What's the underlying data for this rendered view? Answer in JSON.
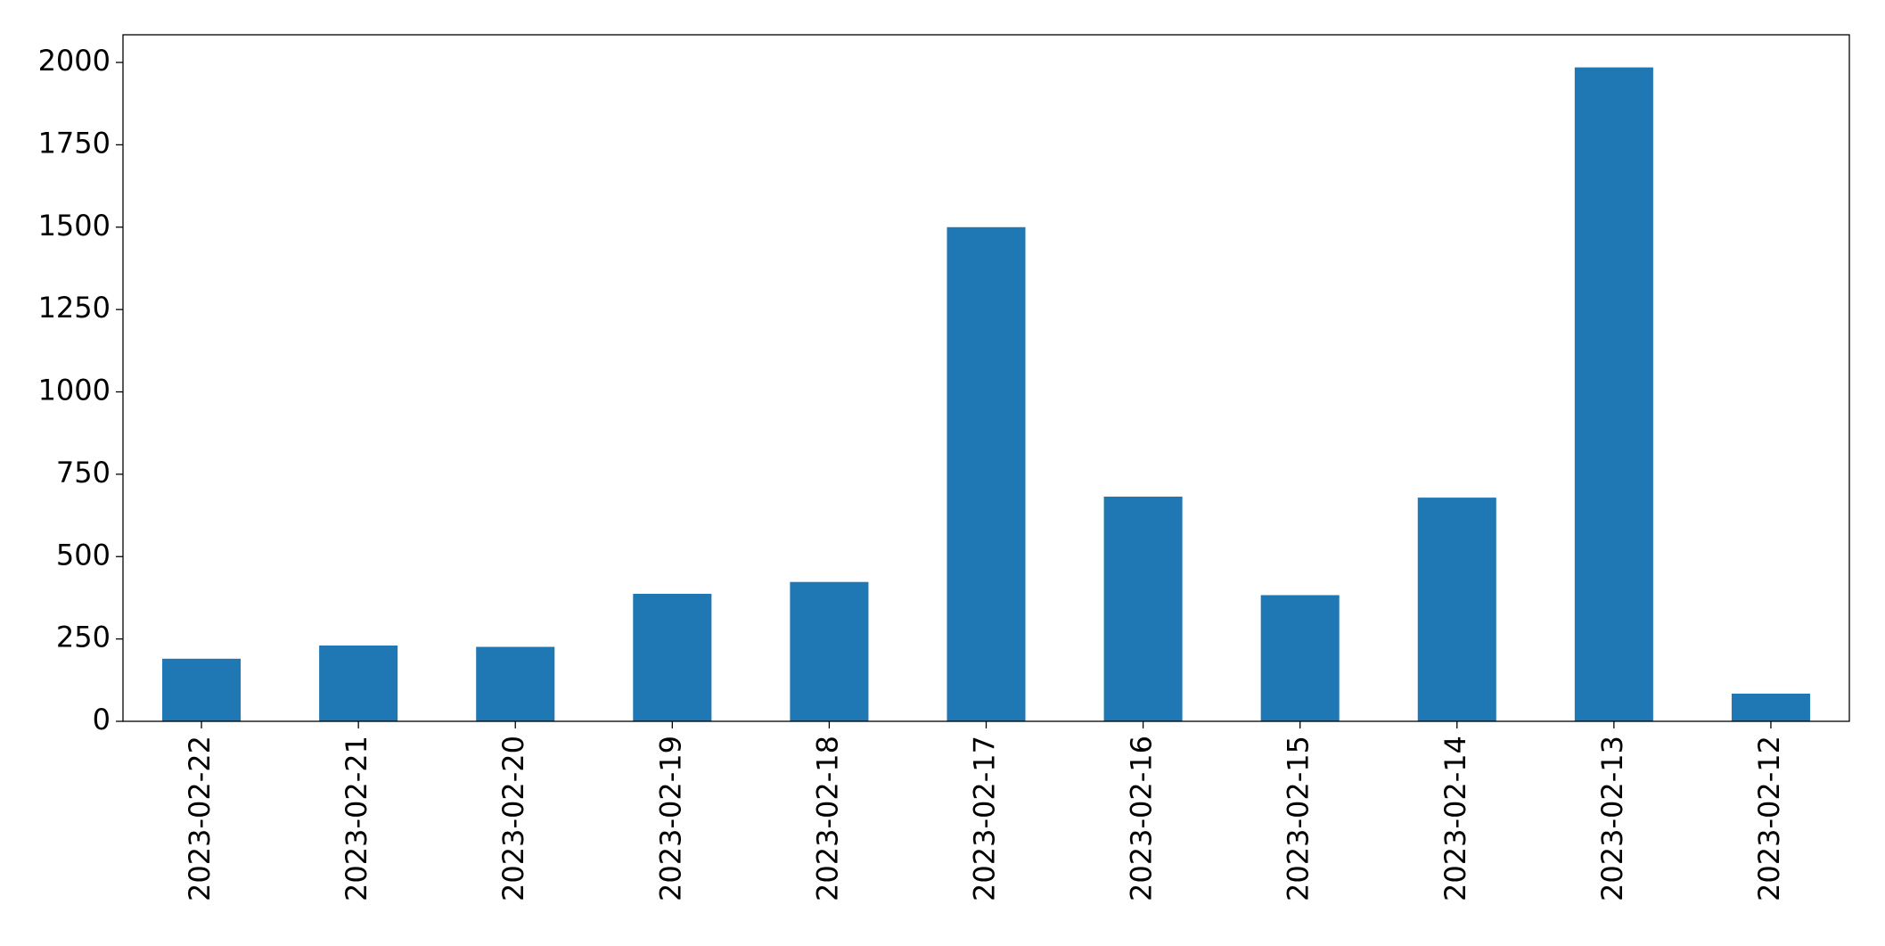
{
  "chart_data": {
    "type": "bar",
    "categories": [
      "2023-02-22",
      "2023-02-21",
      "2023-02-20",
      "2023-02-19",
      "2023-02-18",
      "2023-02-17",
      "2023-02-16",
      "2023-02-15",
      "2023-02-14",
      "2023-02-13",
      "2023-02-12"
    ],
    "values": [
      190,
      230,
      226,
      387,
      423,
      1500,
      682,
      383,
      679,
      1985,
      84
    ],
    "color": "#1f77b4",
    "ylim": [
      0,
      2084
    ],
    "yticks": [
      0,
      250,
      500,
      750,
      1000,
      1250,
      1500,
      1750,
      2000
    ],
    "grid": false
  }
}
